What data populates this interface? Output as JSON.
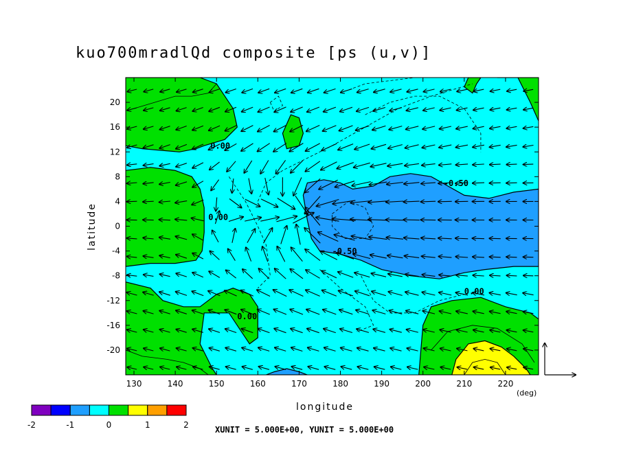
{
  "chart_data": {
    "type": "heatmap",
    "title": "kuo700mradlQd composite [ps (u,v)]",
    "xlabel": "longitude",
    "ylabel": "latitude",
    "x_unit_label": "(deg)",
    "xlim": [
      128,
      228
    ],
    "ylim": [
      -24,
      24
    ],
    "x_ticks": [
      130,
      140,
      150,
      160,
      170,
      180,
      190,
      200,
      210,
      220
    ],
    "y_ticks": [
      20,
      16,
      12,
      8,
      4,
      0,
      -4,
      -8,
      -12,
      -16,
      -20
    ],
    "vector_unit_text": "XUNIT = 5.000E+00, YUNIT = 5.000E+00",
    "colorbar": {
      "levels": [
        -2,
        -1.75,
        -1.5,
        -1.25,
        -1,
        -0.75,
        -0.5,
        -0.25,
        0,
        0.25,
        0.5,
        0.75,
        1,
        1.25,
        1.5,
        1.75,
        2
      ],
      "tick_labels": [
        "-2",
        "-1",
        "0",
        "1",
        "2"
      ],
      "tick_values": [
        -2,
        -1,
        0,
        1,
        2
      ],
      "colors": [
        "#7f00bf",
        "#0000ff",
        "#1f9fff",
        "#00ffff",
        "#00e000",
        "#ffff00",
        "#ff9f00",
        "#ff0000"
      ]
    },
    "contour_labels": [
      {
        "text": "0.00",
        "lon": 148.5,
        "lat": 12.5
      },
      {
        "text": "0.00",
        "lon": 148,
        "lat": 1
      },
      {
        "text": "0.00",
        "lon": 155,
        "lat": -15
      },
      {
        "text": "0.00",
        "lon": 210,
        "lat": -11
      },
      {
        "text": "-0.50",
        "lon": 205,
        "lat": 6.5
      },
      {
        "text": "-0.50",
        "lon": 178,
        "lat": -4.5
      }
    ]
  }
}
